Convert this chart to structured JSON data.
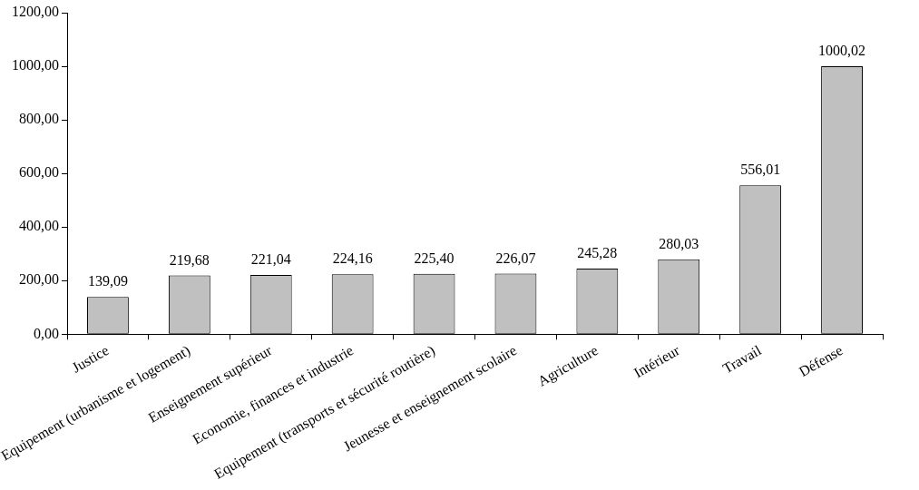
{
  "chart_data": {
    "type": "bar",
    "categories": [
      "Justice",
      "Equipement (urbanisme et logement)",
      "Enseignement supérieur",
      "Economie, finances et industrie",
      "Equipement (transports et sécurité routière)",
      "Jeunesse et enseignement scolaire",
      "Agriculture",
      "Intérieur",
      "Travail",
      "Défense"
    ],
    "values": [
      139.09,
      219.68,
      221.04,
      224.16,
      225.4,
      226.07,
      245.28,
      280.03,
      556.01,
      1000.02
    ],
    "value_labels": [
      "139,09",
      "219,68",
      "221,04",
      "224,16",
      "225,40",
      "226,07",
      "245,28",
      "280,03",
      "556,01",
      "1000,02"
    ],
    "color": "#c0c0c0",
    "ylim": [
      0,
      1200
    ],
    "yticks": [
      {
        "value": 0,
        "label": "0,00"
      },
      {
        "value": 200,
        "label": "200,00"
      },
      {
        "value": 400,
        "label": "400,00"
      },
      {
        "value": 600,
        "label": "600,00"
      },
      {
        "value": 800,
        "label": "800,00"
      },
      {
        "value": 1000,
        "label": "1000,00"
      },
      {
        "value": 1200,
        "label": "1200,00"
      }
    ],
    "grid": false,
    "legend": false
  }
}
